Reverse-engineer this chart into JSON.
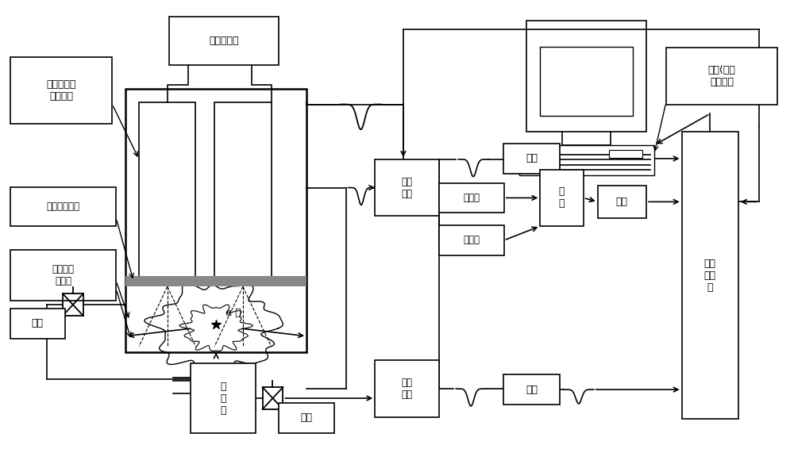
{
  "bg_color": "#ffffff",
  "line_color": "#000000",
  "box_color": "#ffffff",
  "text_color": "#000000",
  "labels": {
    "high_voltage": "高电压模块",
    "uv_pmt": "紫外敏感光\n由倍槽管",
    "uv_glass": "紫外通透玻璃",
    "uv_mirror": "紫外反射\n平面镜",
    "alpha_source": "α 源",
    "valve1": "阀门",
    "pump": "抽\n气\n泵",
    "valve2": "阀门",
    "fan_in_out1": "扇入\n扇出",
    "fan_in_out2": "扇入\n扇出",
    "delay1": "延迟",
    "delay2": "延迟",
    "discriminator1": "甄别器",
    "discriminator2": "甄别器",
    "coincidence": "符\n合",
    "trigger": "触发",
    "mca": "多道\n分析\n器",
    "computer": "电脑(含微\n控制器）"
  }
}
